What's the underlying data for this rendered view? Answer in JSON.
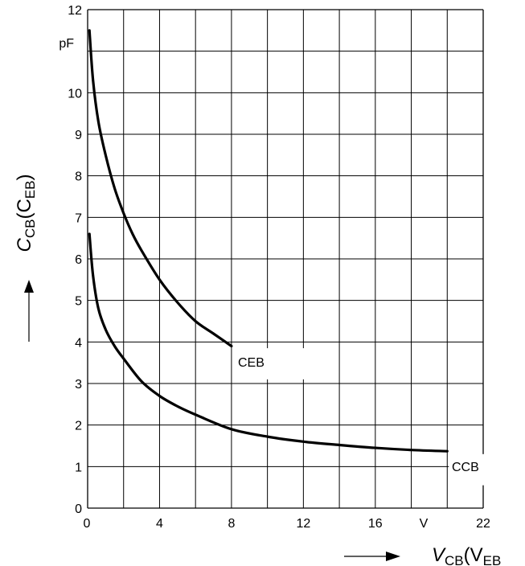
{
  "chart_data": {
    "type": "line",
    "title": "",
    "xlabel": {
      "main": "V",
      "sub": "CB",
      "paren": "(V",
      "sub2": "EB"
    },
    "ylabel": {
      "main": "C",
      "sub": "CB",
      "paren": "(C",
      "sub2": "EB",
      "close": ")"
    },
    "x_unit": "V",
    "y_unit": "pF",
    "xlim": [
      0,
      22
    ],
    "ylim": [
      0,
      12
    ],
    "x_ticks": [
      "0",
      "4",
      "8",
      "12",
      "16",
      "22"
    ],
    "x_tick_values": [
      0,
      4,
      8,
      12,
      16,
      22
    ],
    "y_ticks": [
      "0",
      "1",
      "2",
      "3",
      "4",
      "5",
      "6",
      "7",
      "8",
      "9",
      "10",
      "12"
    ],
    "y_tick_values": [
      0,
      1,
      2,
      3,
      4,
      5,
      6,
      7,
      8,
      9,
      10,
      12
    ],
    "grid": true,
    "series": [
      {
        "name": "CEB",
        "x": [
          0.1,
          0.3,
          0.6,
          1.0,
          1.5,
          2.0,
          2.5,
          3.0,
          4.0,
          5.0,
          6.0,
          7.0,
          8.0
        ],
        "y": [
          11.5,
          10.3,
          9.3,
          8.5,
          7.7,
          7.1,
          6.6,
          6.2,
          5.5,
          4.95,
          4.5,
          4.2,
          3.9
        ]
      },
      {
        "name": "CCB",
        "x": [
          0.1,
          0.3,
          0.6,
          1.0,
          1.5,
          2.0,
          3.0,
          4.0,
          5.0,
          6.0,
          8.0,
          10.0,
          12.0,
          14.0,
          16.0,
          18.0,
          20.0
        ],
        "y": [
          6.6,
          5.6,
          4.8,
          4.3,
          3.9,
          3.6,
          3.05,
          2.7,
          2.45,
          2.25,
          1.9,
          1.72,
          1.6,
          1.52,
          1.45,
          1.4,
          1.37
        ]
      }
    ]
  }
}
